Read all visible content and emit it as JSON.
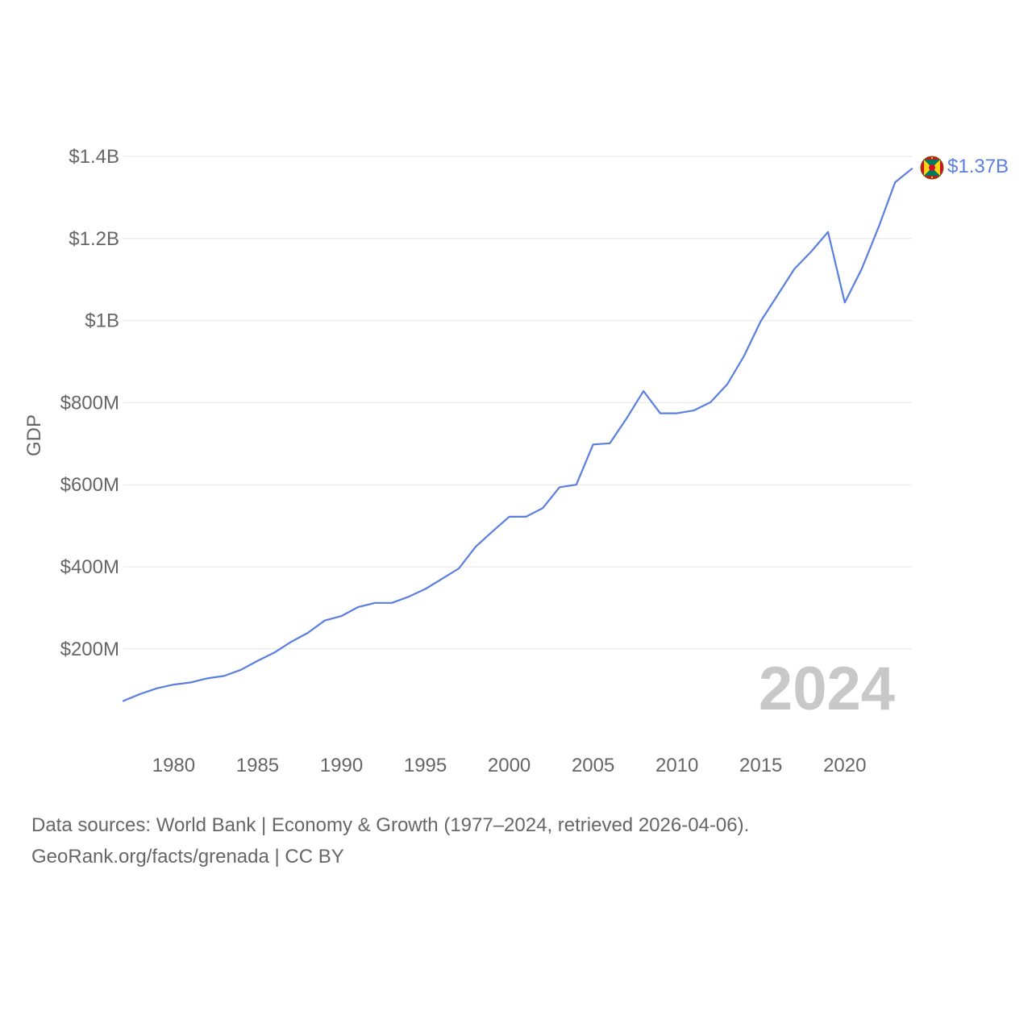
{
  "colors": {
    "line": "#5b7fe0",
    "grid": "#e6e6e6",
    "text": "#666666",
    "watermark": "#c8c8c8"
  },
  "chart_data": {
    "type": "line",
    "title": "",
    "xlabel": "",
    "ylabel": "GDP",
    "xlim": [
      1977,
      2024
    ],
    "ylim": [
      0,
      1400000000
    ],
    "x_ticks": [
      1980,
      1985,
      1990,
      1995,
      2000,
      2005,
      2010,
      2015,
      2020
    ],
    "y_ticks": [
      {
        "value": 200000000,
        "label": "$200M"
      },
      {
        "value": 400000000,
        "label": "$400M"
      },
      {
        "value": 600000000,
        "label": "$600M"
      },
      {
        "value": 800000000,
        "label": "$800M"
      },
      {
        "value": 1000000000,
        "label": "$1B"
      },
      {
        "value": 1200000000,
        "label": "$1.2B"
      },
      {
        "value": 1400000000,
        "label": "$1.4B"
      }
    ],
    "grid": true,
    "series": [
      {
        "name": "Grenada",
        "x": [
          1977,
          1978,
          1979,
          1980,
          1981,
          1982,
          1983,
          1984,
          1985,
          1986,
          1987,
          1988,
          1989,
          1990,
          1991,
          1992,
          1993,
          1994,
          1995,
          1996,
          1997,
          1998,
          1999,
          2000,
          2001,
          2002,
          2003,
          2004,
          2005,
          2006,
          2007,
          2008,
          2009,
          2010,
          2011,
          2012,
          2013,
          2014,
          2015,
          2016,
          2017,
          2018,
          2019,
          2020,
          2021,
          2022,
          2023,
          2024
        ],
        "values": [
          73000000,
          90000000,
          104000000,
          113000000,
          118000000,
          128000000,
          134000000,
          149000000,
          171000000,
          191000000,
          217000000,
          239000000,
          269000000,
          280000000,
          302000000,
          312000000,
          312000000,
          327000000,
          346000000,
          371000000,
          396000000,
          449000000,
          486000000,
          522000000,
          522000000,
          543000000,
          594000000,
          600000000,
          698000000,
          701000000,
          762000000,
          828000000,
          774000000,
          774000000,
          781000000,
          801000000,
          845000000,
          914000000,
          999000000,
          1062000000,
          1126000000,
          1168000000,
          1216000000,
          1044000000,
          1125000000,
          1226000000,
          1337000000,
          1370000000
        ],
        "end_label": "$1.37B"
      }
    ],
    "annotation": "2024"
  },
  "footer": {
    "line1": "Data sources: World Bank | Economy & Growth (1977–2024, retrieved 2026-04-06).",
    "line2": "GeoRank.org/facts/grenada | CC BY"
  }
}
